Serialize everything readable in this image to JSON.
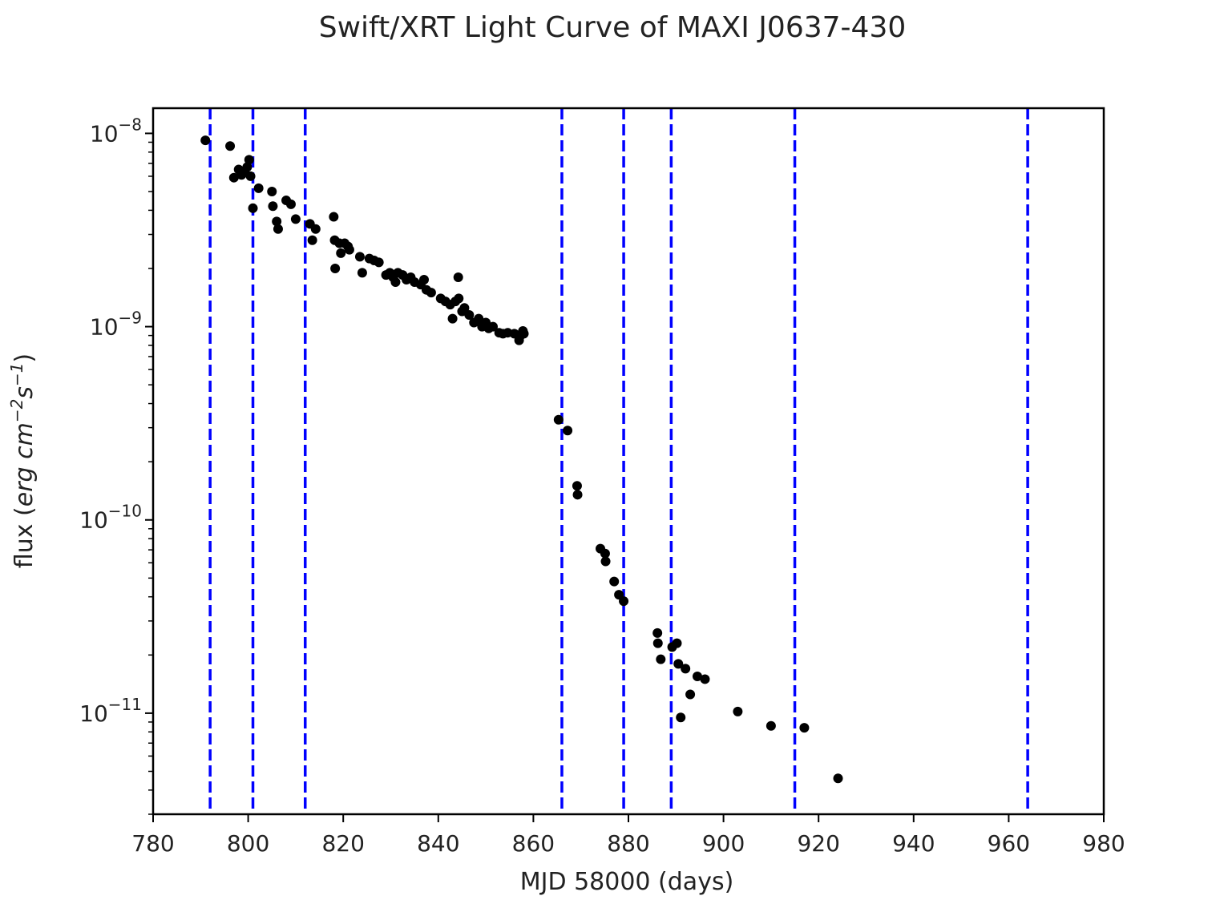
{
  "chart_data": {
    "type": "scatter",
    "title": "Swift/XRT Light Curve of MAXI J0637-430",
    "xlabel": "MJD 58000 (days)",
    "ylabel": {
      "prefix": "flux (",
      "units": "erg cm",
      "cm_exp": "−2",
      "s": "s",
      "s_exp": "−1",
      "suffix": ")"
    },
    "xlim": [
      780,
      980
    ],
    "ylim": [
      3e-12,
      1.35e-08
    ],
    "yscale": "log",
    "x_ticks": [
      780,
      800,
      820,
      840,
      860,
      880,
      900,
      920,
      940,
      960,
      980
    ],
    "x_tick_labels": [
      "780",
      "800",
      "820",
      "840",
      "860",
      "880",
      "900",
      "920",
      "940",
      "960",
      "980"
    ],
    "y_ticks": [
      {
        "value": 1e-08,
        "base": "10",
        "exp": "−8"
      },
      {
        "value": 1e-09,
        "base": "10",
        "exp": "−9"
      },
      {
        "value": 1e-10,
        "base": "10",
        "exp": "−10"
      },
      {
        "value": 1e-11,
        "base": "10",
        "exp": "−11"
      }
    ],
    "point_color": "#000000",
    "vline_color": "#0000ff",
    "vlines": [
      792,
      801,
      812,
      866,
      879,
      889,
      915,
      964
    ],
    "points": [
      [
        791,
        9.2e-09
      ],
      [
        796.2,
        8.6e-09
      ],
      [
        797,
        5.9e-09
      ],
      [
        798,
        6.5e-09
      ],
      [
        798.6,
        6.1e-09
      ],
      [
        799.3,
        6.3e-09
      ],
      [
        799.8,
        6.7e-09
      ],
      [
        800.2,
        7.3e-09
      ],
      [
        800.5,
        6e-09
      ],
      [
        801,
        4.1e-09
      ],
      [
        802.2,
        5.2e-09
      ],
      [
        805,
        5e-09
      ],
      [
        805.2,
        4.2e-09
      ],
      [
        806,
        3.5e-09
      ],
      [
        806.3,
        3.2e-09
      ],
      [
        808,
        4.5e-09
      ],
      [
        809,
        4.3e-09
      ],
      [
        810,
        3.6e-09
      ],
      [
        813,
        3.4e-09
      ],
      [
        813.5,
        2.8e-09
      ],
      [
        814.2,
        3.2e-09
      ],
      [
        818,
        3.7e-09
      ],
      [
        818.2,
        2.8e-09
      ],
      [
        818.3,
        2e-09
      ],
      [
        819.2,
        2.7e-09
      ],
      [
        819.5,
        2.4e-09
      ],
      [
        820.3,
        2.7e-09
      ],
      [
        821,
        2.6e-09
      ],
      [
        821.3,
        2.5e-09
      ],
      [
        823.5,
        2.3e-09
      ],
      [
        824,
        1.9e-09
      ],
      [
        825.5,
        2.25e-09
      ],
      [
        826.5,
        2.2e-09
      ],
      [
        827.5,
        2.15e-09
      ],
      [
        829,
        1.85e-09
      ],
      [
        829.8,
        1.9e-09
      ],
      [
        830.5,
        1.8e-09
      ],
      [
        831,
        1.7e-09
      ],
      [
        831.5,
        1.9e-09
      ],
      [
        832.5,
        1.85e-09
      ],
      [
        833.3,
        1.75e-09
      ],
      [
        834.2,
        1.8e-09
      ],
      [
        835,
        1.7e-09
      ],
      [
        836.3,
        1.65e-09
      ],
      [
        837,
        1.75e-09
      ],
      [
        837.5,
        1.55e-09
      ],
      [
        838.5,
        1.5e-09
      ],
      [
        840.5,
        1.4e-09
      ],
      [
        841.5,
        1.35e-09
      ],
      [
        842.5,
        1.3e-09
      ],
      [
        843,
        1.1e-09
      ],
      [
        843.6,
        1.35e-09
      ],
      [
        844.2,
        1.8e-09
      ],
      [
        844.3,
        1.4e-09
      ],
      [
        845,
        1.2e-09
      ],
      [
        845.5,
        1.25e-09
      ],
      [
        846.5,
        1.15e-09
      ],
      [
        847.5,
        1.05e-09
      ],
      [
        848.5,
        1.1e-09
      ],
      [
        849.2,
        1e-09
      ],
      [
        850,
        1.05e-09
      ],
      [
        850.6,
        9.8e-10
      ],
      [
        851.5,
        1e-09
      ],
      [
        852.8,
        9.3e-10
      ],
      [
        853.6,
        9.2e-10
      ],
      [
        854.6,
        9.3e-10
      ],
      [
        856,
        9.2e-10
      ],
      [
        857,
        8.5e-10
      ],
      [
        857.3,
        9e-10
      ],
      [
        857.8,
        9.5e-10
      ],
      [
        858,
        9.2e-10
      ],
      [
        865.3,
        3.3e-10
      ],
      [
        867.2,
        2.9e-10
      ],
      [
        869.2,
        1.5e-10
      ],
      [
        869.3,
        1.35e-10
      ],
      [
        874.1,
        7.1e-11
      ],
      [
        875.1,
        6.7e-11
      ],
      [
        875.2,
        6.1e-11
      ],
      [
        877,
        4.8e-11
      ],
      [
        878,
        4.1e-11
      ],
      [
        879,
        3.8e-11
      ],
      [
        886.1,
        2.6e-11
      ],
      [
        886.2,
        2.3e-11
      ],
      [
        886.8,
        1.9e-11
      ],
      [
        889.2,
        2.2e-11
      ],
      [
        890.2,
        2.3e-11
      ],
      [
        890.5,
        1.8e-11
      ],
      [
        891,
        9.5e-12
      ],
      [
        892,
        1.7e-11
      ],
      [
        893,
        1.25e-11
      ],
      [
        894.5,
        1.55e-11
      ],
      [
        896.1,
        1.5e-11
      ],
      [
        903,
        1.02e-11
      ],
      [
        910,
        8.6e-12
      ],
      [
        917,
        8.4e-12
      ],
      [
        924.1,
        4.6e-12
      ]
    ]
  }
}
